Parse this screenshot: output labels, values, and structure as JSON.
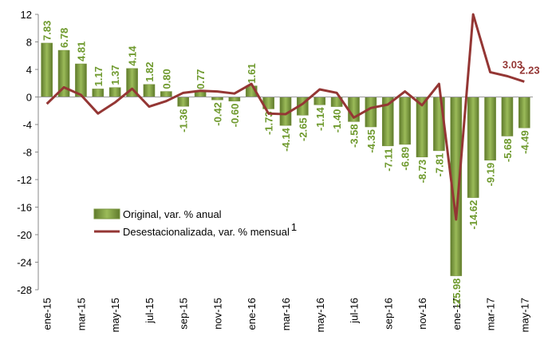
{
  "chart_data": {
    "type": "bar_line",
    "categories": [
      "ene-15",
      null,
      "mar-15",
      null,
      "may-15",
      null,
      "jul-15",
      null,
      "sep-15",
      null,
      "nov-15",
      null,
      "ene-16",
      null,
      "mar-16",
      null,
      "may-16",
      null,
      "jul-16",
      null,
      "sep-16",
      null,
      "nov-16",
      null,
      "ene-17",
      null,
      "mar-17",
      null,
      "may-17"
    ],
    "series": [
      {
        "name": "Original, var. % anual",
        "type": "bar",
        "color": "#77933c",
        "label_color": "#6f9a2e",
        "values": [
          7.83,
          6.78,
          4.81,
          1.17,
          1.37,
          4.14,
          1.82,
          0.8,
          -1.36,
          0.77,
          -0.42,
          -0.6,
          1.61,
          -1.73,
          -4.14,
          -2.65,
          -1.14,
          -1.4,
          -3.58,
          -4.35,
          -7.11,
          -6.89,
          -8.73,
          -7.81,
          -25.98,
          -14.62,
          -9.19,
          -5.68,
          -4.49
        ],
        "value_labels": [
          "7.83",
          "6.78",
          "4.81",
          "1.17",
          "1.37",
          "4.14",
          "1.82",
          "0.80",
          "-1.36",
          "0.77",
          "-0.42",
          "-0.60",
          "1.61",
          "-1.73",
          "-4.14",
          "-2.65",
          "-1.14",
          "-1.40",
          "-3.58",
          "-4.35",
          "-7.11",
          "-6.89",
          "-8.73",
          "-7.81",
          "-25.98",
          "-14.62",
          "-9.19",
          "-5.68",
          "-4.49"
        ]
      },
      {
        "name": "Desestacionalizada, var. % mensual",
        "note": "1",
        "type": "line",
        "color": "#943634",
        "values": [
          -1.0,
          1.4,
          0.3,
          -2.4,
          -0.8,
          1.2,
          -1.4,
          -0.6,
          0.6,
          0.9,
          0.8,
          0.5,
          1.9,
          -2.4,
          -2.5,
          -1.0,
          1.1,
          0.6,
          -3.0,
          -1.6,
          -1.1,
          0.8,
          -1.2,
          1.9,
          -17.8,
          12.0,
          3.6,
          3.03,
          2.23
        ],
        "value_labels": [
          null,
          null,
          null,
          null,
          null,
          null,
          null,
          null,
          null,
          null,
          null,
          null,
          null,
          null,
          null,
          null,
          null,
          null,
          null,
          null,
          null,
          null,
          null,
          null,
          null,
          null,
          null,
          "3.03",
          "2.23"
        ]
      }
    ],
    "ylim": [
      -28,
      12
    ],
    "yticks": [
      -28,
      -24,
      -20,
      -16,
      -12,
      -8,
      -4,
      0,
      4,
      8,
      12
    ],
    "grid": false,
    "legend": "lower-left"
  }
}
